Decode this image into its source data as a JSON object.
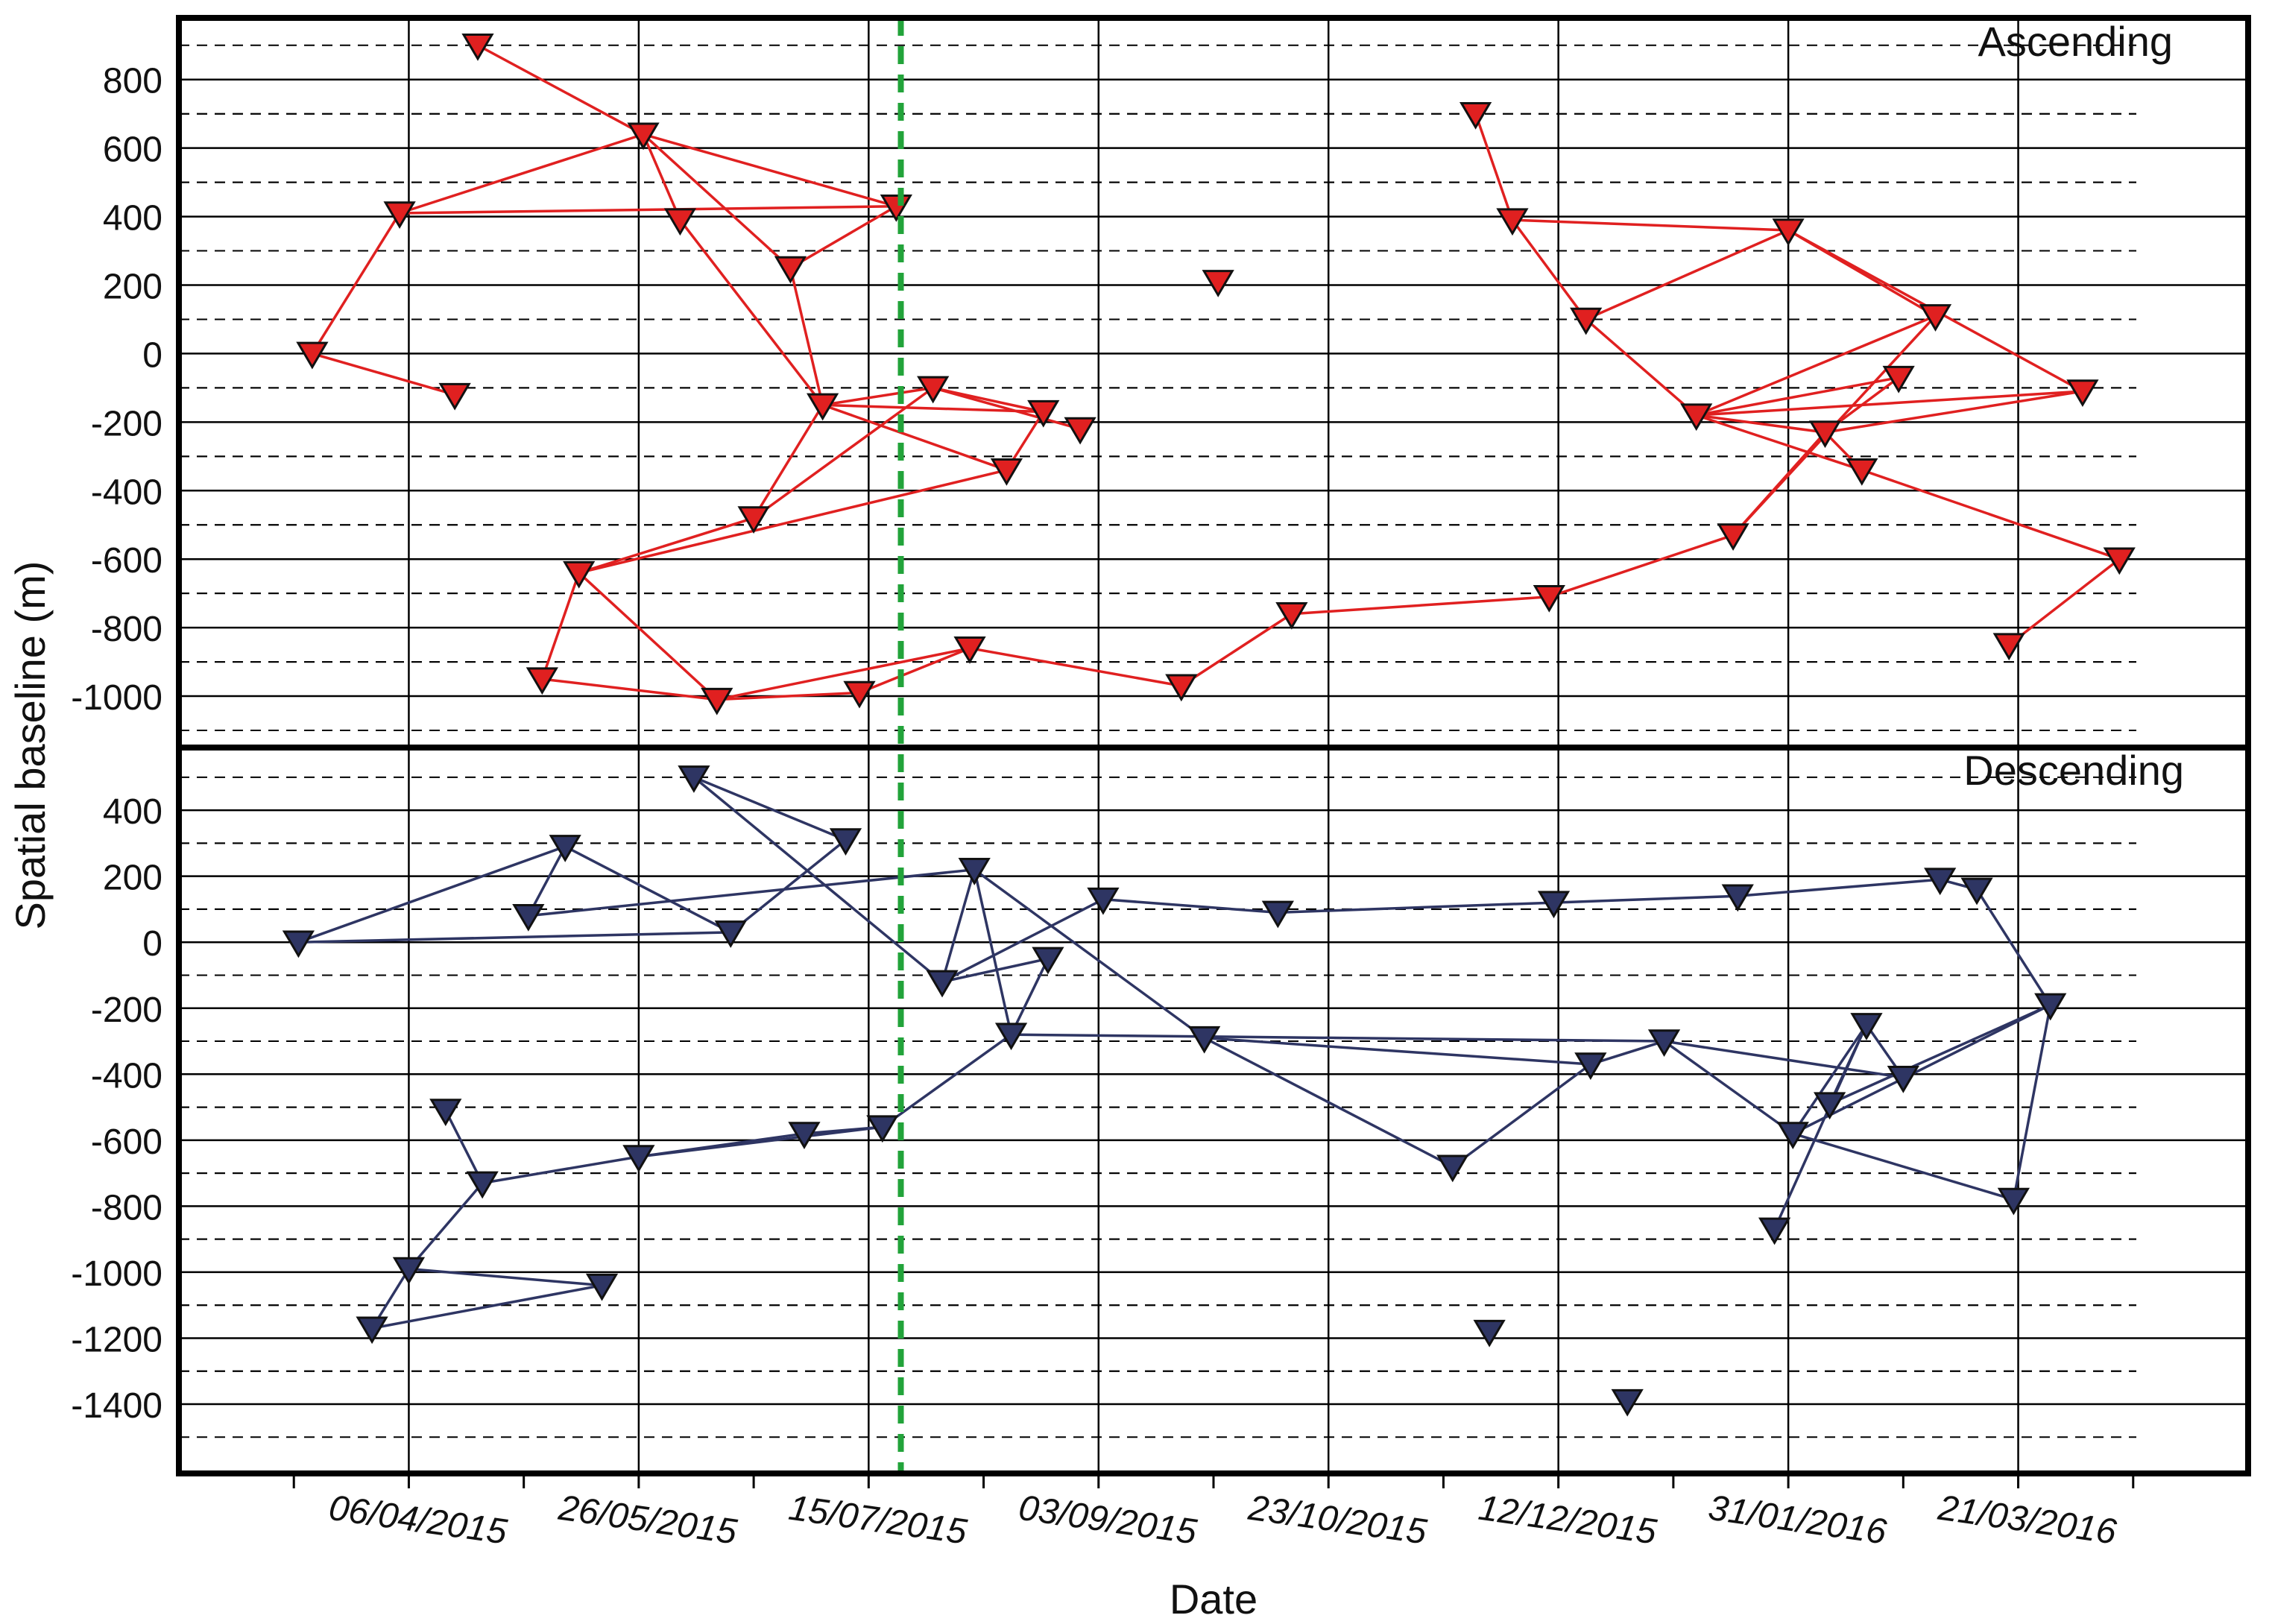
{
  "chart_data": {
    "type": "scatter",
    "xlabel": "Date",
    "ylabel": "Spatial baseline (m)",
    "x_tick_labels": [
      "06/04/2015",
      "26/05/2015",
      "15/07/2015",
      "03/09/2015",
      "23/10/2015",
      "12/12/2015",
      "31/01/2016",
      "21/03/2016"
    ],
    "x_tick_dates": [
      "2015-04-06",
      "2015-05-26",
      "2015-07-15",
      "2015-09-03",
      "2015-10-23",
      "2015-12-12",
      "2016-01-31",
      "2016-03-21"
    ],
    "xlim": [
      "2015-02-15",
      "2016-05-10"
    ],
    "reference_line": {
      "date": "2015-07-22",
      "color": "#22a33a",
      "style": "dashed"
    },
    "panels": [
      {
        "name": "Ascending",
        "color": "#e02020",
        "ylim": [
          -1150,
          980
        ],
        "y_ticks": [
          800,
          600,
          400,
          200,
          0,
          -200,
          -400,
          -600,
          -800,
          -1000
        ],
        "y_tick_labels": [
          "800",
          "600",
          "400",
          "200",
          "0",
          "-200",
          "-400",
          "-600",
          "-800",
          "-1000"
        ],
        "points": [
          {
            "id": "A1",
            "date": "2015-03-16",
            "y": 0
          },
          {
            "id": "A2",
            "date": "2015-04-04",
            "y": 410
          },
          {
            "id": "A3",
            "date": "2015-04-16",
            "y": -120
          },
          {
            "id": "A4",
            "date": "2015-04-21",
            "y": 900
          },
          {
            "id": "A5",
            "date": "2015-05-05",
            "y": -950
          },
          {
            "id": "A6",
            "date": "2015-05-13",
            "y": -640
          },
          {
            "id": "A7",
            "date": "2015-05-27",
            "y": 640
          },
          {
            "id": "A8",
            "date": "2015-06-04",
            "y": 390
          },
          {
            "id": "A9",
            "date": "2015-06-12",
            "y": -1010
          },
          {
            "id": "A10",
            "date": "2015-06-20",
            "y": -480
          },
          {
            "id": "A11",
            "date": "2015-06-28",
            "y": 250
          },
          {
            "id": "A12",
            "date": "2015-07-05",
            "y": -150
          },
          {
            "id": "A13",
            "date": "2015-07-13",
            "y": -990
          },
          {
            "id": "A14",
            "date": "2015-07-21",
            "y": 430
          },
          {
            "id": "A15",
            "date": "2015-07-29",
            "y": -100
          },
          {
            "id": "A16",
            "date": "2015-08-06",
            "y": -860
          },
          {
            "id": "A17",
            "date": "2015-08-14",
            "y": -340
          },
          {
            "id": "A18",
            "date": "2015-08-22",
            "y": -170
          },
          {
            "id": "A19",
            "date": "2015-08-30",
            "y": -220
          },
          {
            "id": "A20",
            "date": "2015-09-21",
            "y": -970
          },
          {
            "id": "A21",
            "date": "2015-09-29",
            "y": 210
          },
          {
            "id": "A22",
            "date": "2015-10-15",
            "y": -760
          },
          {
            "id": "A23",
            "date": "2015-11-24",
            "y": 700
          },
          {
            "id": "A24",
            "date": "2015-12-02",
            "y": 390
          },
          {
            "id": "A25",
            "date": "2015-12-10",
            "y": -710
          },
          {
            "id": "A26",
            "date": "2015-12-18",
            "y": 100
          },
          {
            "id": "A27",
            "date": "2016-01-11",
            "y": -180
          },
          {
            "id": "A28",
            "date": "2016-01-19",
            "y": -530
          },
          {
            "id": "A29",
            "date": "2016-01-31",
            "y": 360
          },
          {
            "id": "A30",
            "date": "2016-02-08",
            "y": -230
          },
          {
            "id": "A31",
            "date": "2016-02-16",
            "y": -340
          },
          {
            "id": "A32",
            "date": "2016-02-24",
            "y": -70
          },
          {
            "id": "A33",
            "date": "2016-03-03",
            "y": 110
          },
          {
            "id": "A34",
            "date": "2016-03-19",
            "y": -850
          },
          {
            "id": "A35",
            "date": "2016-04-04",
            "y": -110
          },
          {
            "id": "A36",
            "date": "2016-04-12",
            "y": -600
          }
        ],
        "connections": [
          [
            "A4",
            "A7"
          ],
          [
            "A7",
            "A2"
          ],
          [
            "A2",
            "A1"
          ],
          [
            "A1",
            "A3"
          ],
          [
            "A2",
            "A14"
          ],
          [
            "A7",
            "A8"
          ],
          [
            "A7",
            "A14"
          ],
          [
            "A7",
            "A11"
          ],
          [
            "A8",
            "A12"
          ],
          [
            "A11",
            "A14"
          ],
          [
            "A11",
            "A12"
          ],
          [
            "A12",
            "A15"
          ],
          [
            "A12",
            "A17"
          ],
          [
            "A12",
            "A18"
          ],
          [
            "A12",
            "A10"
          ],
          [
            "A15",
            "A10"
          ],
          [
            "A15",
            "A18"
          ],
          [
            "A15",
            "A19"
          ],
          [
            "A18",
            "A17"
          ],
          [
            "A10",
            "A6"
          ],
          [
            "A6",
            "A17"
          ],
          [
            "A6",
            "A5"
          ],
          [
            "A6",
            "A9"
          ],
          [
            "A5",
            "A9"
          ],
          [
            "A9",
            "A13"
          ],
          [
            "A9",
            "A16"
          ],
          [
            "A13",
            "A16"
          ],
          [
            "A16",
            "A20"
          ],
          [
            "A20",
            "A22"
          ],
          [
            "A22",
            "A25"
          ],
          [
            "A25",
            "A28"
          ],
          [
            "A23",
            "A24"
          ],
          [
            "A24",
            "A29"
          ],
          [
            "A24",
            "A26"
          ],
          [
            "A26",
            "A29"
          ],
          [
            "A26",
            "A27"
          ],
          [
            "A29",
            "A33"
          ],
          [
            "A29",
            "A35"
          ],
          [
            "A27",
            "A30"
          ],
          [
            "A27",
            "A31"
          ],
          [
            "A27",
            "A32"
          ],
          [
            "A27",
            "A33"
          ],
          [
            "A27",
            "A35"
          ],
          [
            "A28",
            "A33"
          ],
          [
            "A30",
            "A32"
          ],
          [
            "A30",
            "A35"
          ],
          [
            "A30",
            "A31"
          ],
          [
            "A31",
            "A36"
          ],
          [
            "A36",
            "A34"
          ],
          [
            "A28",
            "A30"
          ]
        ]
      },
      {
        "name": "Descending",
        "color": "#2e3563",
        "ylim": [
          -1610,
          590
        ],
        "y_ticks": [
          400,
          200,
          0,
          -200,
          -400,
          -600,
          -800,
          -1000,
          -1200,
          -1400
        ],
        "y_tick_labels": [
          "400",
          "200",
          "0",
          "-200",
          "-400",
          "-600",
          "-800",
          "-1000",
          "-1200",
          "-1400"
        ],
        "points": [
          {
            "id": "D1",
            "date": "2015-03-13",
            "y": 0
          },
          {
            "id": "D2",
            "date": "2015-03-29",
            "y": -1170
          },
          {
            "id": "D3",
            "date": "2015-04-06",
            "y": -990
          },
          {
            "id": "D4",
            "date": "2015-04-14",
            "y": -510
          },
          {
            "id": "D5",
            "date": "2015-04-22",
            "y": -730
          },
          {
            "id": "D6",
            "date": "2015-05-02",
            "y": 80
          },
          {
            "id": "D7",
            "date": "2015-05-10",
            "y": 290
          },
          {
            "id": "D8",
            "date": "2015-05-18",
            "y": -1040
          },
          {
            "id": "D9",
            "date": "2015-05-26",
            "y": -650
          },
          {
            "id": "D10",
            "date": "2015-06-07",
            "y": 500
          },
          {
            "id": "D11",
            "date": "2015-06-15",
            "y": 30
          },
          {
            "id": "D12",
            "date": "2015-07-01",
            "y": -580
          },
          {
            "id": "D13",
            "date": "2015-07-10",
            "y": 310
          },
          {
            "id": "D14",
            "date": "2015-07-18",
            "y": -560
          },
          {
            "id": "D15",
            "date": "2015-07-31",
            "y": -120
          },
          {
            "id": "D16",
            "date": "2015-08-07",
            "y": 220
          },
          {
            "id": "D17",
            "date": "2015-08-15",
            "y": -280
          },
          {
            "id": "D18",
            "date": "2015-08-23",
            "y": -50
          },
          {
            "id": "D19",
            "date": "2015-09-04",
            "y": 130
          },
          {
            "id": "D20",
            "date": "2015-09-26",
            "y": -290
          },
          {
            "id": "D21",
            "date": "2015-10-12",
            "y": 90
          },
          {
            "id": "D22",
            "date": "2015-11-19",
            "y": -680
          },
          {
            "id": "D23",
            "date": "2015-11-27",
            "y": -1180
          },
          {
            "id": "D24",
            "date": "2015-12-11",
            "y": 120
          },
          {
            "id": "D25",
            "date": "2015-12-19",
            "y": -370
          },
          {
            "id": "D26",
            "date": "2015-12-27",
            "y": -1390
          },
          {
            "id": "D27",
            "date": "2016-01-04",
            "y": -300
          },
          {
            "id": "D28",
            "date": "2016-01-20",
            "y": 140
          },
          {
            "id": "D29",
            "date": "2016-01-28",
            "y": -870
          },
          {
            "id": "D30",
            "date": "2016-02-01",
            "y": -580
          },
          {
            "id": "D31",
            "date": "2016-02-09",
            "y": -490
          },
          {
            "id": "D32",
            "date": "2016-02-17",
            "y": -250
          },
          {
            "id": "D33",
            "date": "2016-02-25",
            "y": -410
          },
          {
            "id": "D34",
            "date": "2016-03-04",
            "y": 190
          },
          {
            "id": "D35",
            "date": "2016-03-12",
            "y": 160
          },
          {
            "id": "D36",
            "date": "2016-03-20",
            "y": -780
          },
          {
            "id": "D37",
            "date": "2016-03-28",
            "y": -190
          }
        ],
        "connections": [
          [
            "D1",
            "D7"
          ],
          [
            "D1",
            "D11"
          ],
          [
            "D7",
            "D6"
          ],
          [
            "D7",
            "D11"
          ],
          [
            "D6",
            "D16"
          ],
          [
            "D10",
            "D13"
          ],
          [
            "D10",
            "D15"
          ],
          [
            "D13",
            "D11"
          ],
          [
            "D16",
            "D15"
          ],
          [
            "D16",
            "D17"
          ],
          [
            "D16",
            "D20"
          ],
          [
            "D15",
            "D19"
          ],
          [
            "D15",
            "D18"
          ],
          [
            "D18",
            "D17"
          ],
          [
            "D17",
            "D14"
          ],
          [
            "D17",
            "D27"
          ],
          [
            "D14",
            "D12"
          ],
          [
            "D12",
            "D9"
          ],
          [
            "D9",
            "D5"
          ],
          [
            "D5",
            "D4"
          ],
          [
            "D5",
            "D3"
          ],
          [
            "D3",
            "D8"
          ],
          [
            "D8",
            "D2"
          ],
          [
            "D2",
            "D3"
          ],
          [
            "D19",
            "D21"
          ],
          [
            "D21",
            "D24"
          ],
          [
            "D24",
            "D28"
          ],
          [
            "D28",
            "D34"
          ],
          [
            "D34",
            "D35"
          ],
          [
            "D35",
            "D37"
          ],
          [
            "D20",
            "D22"
          ],
          [
            "D22",
            "D25"
          ],
          [
            "D25",
            "D27"
          ],
          [
            "D27",
            "D30"
          ],
          [
            "D27",
            "D33"
          ],
          [
            "D20",
            "D25"
          ],
          [
            "D30",
            "D32"
          ],
          [
            "D32",
            "D31"
          ],
          [
            "D30",
            "D37"
          ],
          [
            "D31",
            "D37"
          ],
          [
            "D32",
            "D33"
          ],
          [
            "D30",
            "D36"
          ],
          [
            "D36",
            "D37"
          ],
          [
            "D29",
            "D32"
          ],
          [
            "D9",
            "D14"
          ]
        ]
      }
    ]
  }
}
